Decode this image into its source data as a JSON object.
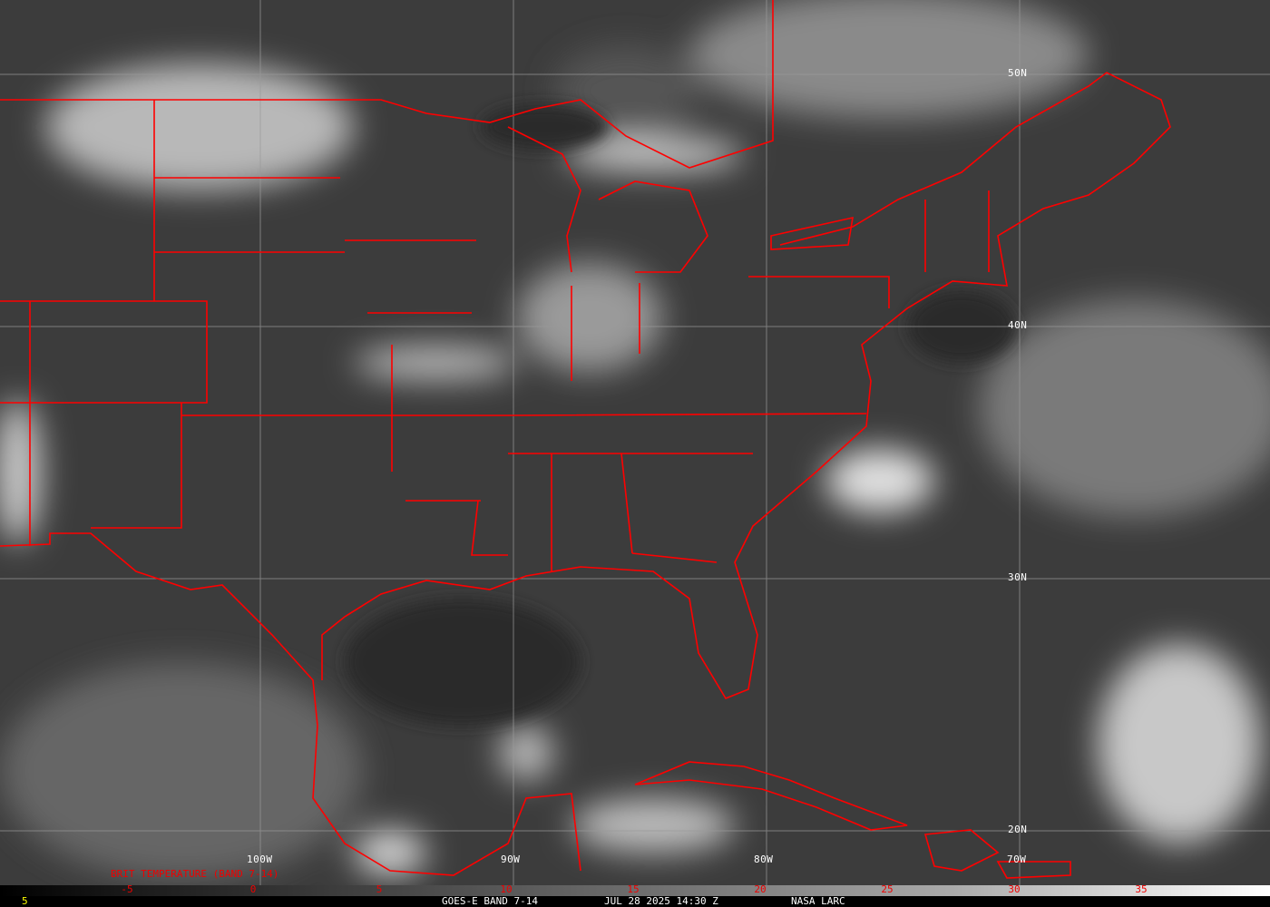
{
  "map": {
    "longitude_labels": [
      "100W",
      "90W",
      "80W",
      "70W"
    ],
    "latitude_labels": [
      "50N",
      "40N",
      "30N",
      "20N"
    ],
    "product_label": "BRIT TEMPERATURE (BAND 7-14)",
    "boundary_color": "#ff0000",
    "gridline_color": "#9a9a9a"
  },
  "colorbar": {
    "ticks": [
      "-5",
      "0",
      "5",
      "10",
      "15",
      "20",
      "25",
      "30",
      "35"
    ],
    "tick_color": "#ff0000"
  },
  "footer": {
    "frame_number": "5",
    "satellite": "GOES-E BAND 7-14",
    "datetime": "JUL 28 2025 14:30 Z",
    "source": "NASA LARC"
  }
}
